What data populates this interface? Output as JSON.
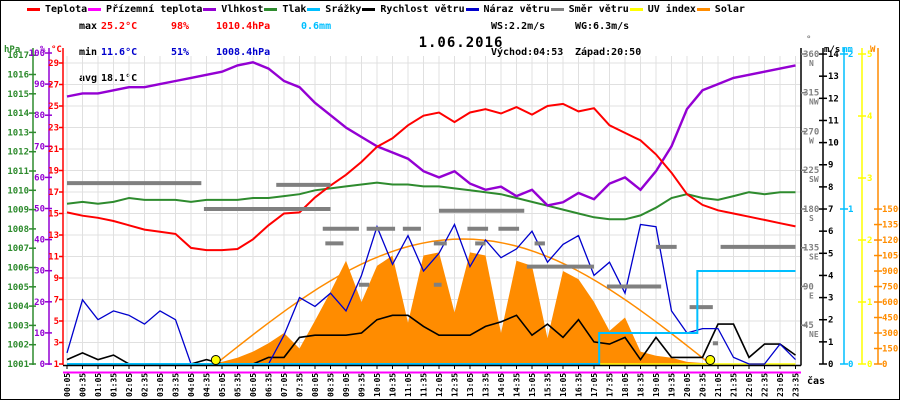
{
  "header": {
    "legend": [
      {
        "label": "Teplota",
        "color": "#ff0000"
      },
      {
        "label": "Přízemní teplota",
        "color": "#ff00ff"
      },
      {
        "label": "Vlhkost",
        "color": "#9400d3"
      },
      {
        "label": "Tlak",
        "color": "#2e8b2e"
      },
      {
        "label": "Srážky",
        "color": "#00bfff"
      },
      {
        "label": "Rychlost větru",
        "color": "#000000"
      },
      {
        "label": "Náraz větru",
        "color": "#0000cd"
      },
      {
        "label": "Směr větru",
        "color": "#808080"
      },
      {
        "label": "UV index",
        "color": "#ffff00"
      },
      {
        "label": "Solar",
        "color": "#ff8c00"
      }
    ],
    "stats": {
      "max_label": "max",
      "max_temp": "25.2°C",
      "max_hum": "98%",
      "max_press": "1010.4hPa",
      "rain_total": "0.6mm",
      "min_label": "min",
      "min_temp": "11.6°C",
      "min_hum": "51%",
      "min_press": "1008.4hPa",
      "avg_label": "avg",
      "avg_temp": "18.1°C",
      "ws": "WS:2.2m/s",
      "wg": "WG:6.3m/s",
      "sunrise": "Východ:04:53",
      "sunset": "Západ:20:50"
    },
    "title": "1.06.2016"
  },
  "chart_data": {
    "type": "line",
    "title": "1.06.2016",
    "x_label": "čas",
    "times": [
      "00:05",
      "00:35",
      "01:05",
      "01:35",
      "02:05",
      "02:35",
      "03:05",
      "03:35",
      "04:05",
      "04:35",
      "05:05",
      "05:35",
      "06:05",
      "06:35",
      "07:05",
      "07:35",
      "08:05",
      "08:35",
      "09:05",
      "09:35",
      "10:05",
      "10:35",
      "11:05",
      "11:35",
      "12:05",
      "12:35",
      "13:05",
      "13:35",
      "14:05",
      "14:35",
      "15:05",
      "15:35",
      "16:05",
      "16:35",
      "17:05",
      "17:35",
      "18:05",
      "18:35",
      "19:05",
      "19:35",
      "20:05",
      "20:35",
      "21:05",
      "21:35",
      "22:05",
      "22:35",
      "23:05",
      "23:35"
    ],
    "series": [
      {
        "name": "Teplota",
        "unit": "°C",
        "color": "#ff0000",
        "axis": "c",
        "width": 2,
        "values": [
          15.1,
          14.8,
          14.6,
          14.3,
          13.9,
          13.5,
          13.3,
          13.1,
          11.8,
          11.6,
          11.6,
          11.7,
          12.6,
          13.9,
          15.0,
          15.1,
          16.5,
          17.6,
          18.6,
          19.8,
          21.2,
          22.0,
          23.2,
          24.1,
          24.4,
          23.5,
          24.4,
          24.7,
          24.3,
          24.9,
          24.2,
          25.0,
          25.2,
          24.5,
          24.8,
          23.2,
          22.5,
          21.8,
          20.5,
          18.8,
          16.8,
          15.8,
          15.3,
          15.0,
          14.7,
          14.4,
          14.1,
          13.8
        ]
      },
      {
        "name": "Vlhkost",
        "unit": "%",
        "color": "#9400d3",
        "axis": "pct",
        "width": 2.4,
        "values": [
          86,
          87,
          87,
          88,
          89,
          89,
          90,
          91,
          92,
          93,
          94,
          96,
          97,
          95,
          91,
          89,
          84,
          80,
          76,
          73,
          70,
          68,
          66,
          62,
          60,
          62,
          58,
          56,
          57,
          54,
          56,
          51,
          52,
          55,
          53,
          58,
          60,
          56,
          62,
          70,
          82,
          88,
          90,
          92,
          93,
          94,
          95,
          96
        ]
      },
      {
        "name": "Tlak",
        "unit": "hPa",
        "color": "#2e8b2e",
        "axis": "hpa",
        "width": 2,
        "values": [
          1009.3,
          1009.4,
          1009.3,
          1009.4,
          1009.6,
          1009.5,
          1009.5,
          1009.5,
          1009.4,
          1009.5,
          1009.5,
          1009.5,
          1009.6,
          1009.6,
          1009.7,
          1009.8,
          1010.0,
          1010.1,
          1010.2,
          1010.3,
          1010.4,
          1010.3,
          1010.3,
          1010.2,
          1010.2,
          1010.1,
          1010.0,
          1009.9,
          1009.8,
          1009.6,
          1009.4,
          1009.2,
          1009.0,
          1008.8,
          1008.6,
          1008.5,
          1008.5,
          1008.7,
          1009.1,
          1009.6,
          1009.8,
          1009.6,
          1009.5,
          1009.7,
          1009.9,
          1009.8,
          1009.9,
          1009.9
        ]
      },
      {
        "name": "Rychlost větru",
        "unit": "m/s",
        "color": "#000000",
        "axis": "ms",
        "width": 1.6,
        "values": [
          0.2,
          0.5,
          0.2,
          0.4,
          0.0,
          0.0,
          0.0,
          0.0,
          0.0,
          0.2,
          0.0,
          0.0,
          0.0,
          0.3,
          0.3,
          1.2,
          1.3,
          1.3,
          1.3,
          1.4,
          2.0,
          2.2,
          2.2,
          1.7,
          1.3,
          1.3,
          1.3,
          1.7,
          1.9,
          2.2,
          1.3,
          1.8,
          1.2,
          2.0,
          1.0,
          0.9,
          1.2,
          0.2,
          1.2,
          0.3,
          0.3,
          0.3,
          1.8,
          1.8,
          0.3,
          0.9,
          0.9,
          0.4
        ]
      },
      {
        "name": "Náraz větru",
        "unit": "m/s",
        "color": "#0000cd",
        "axis": "ms",
        "width": 1.3,
        "values": [
          0.5,
          2.9,
          2.0,
          2.4,
          2.2,
          1.8,
          2.4,
          2.0,
          0.0,
          0.0,
          0.0,
          0.0,
          0.0,
          0.0,
          1.3,
          3.0,
          2.6,
          3.2,
          2.4,
          4.0,
          6.2,
          4.5,
          5.8,
          4.2,
          5.0,
          6.3,
          4.4,
          5.6,
          4.8,
          5.2,
          6.0,
          4.6,
          5.4,
          5.8,
          4.0,
          4.6,
          3.2,
          6.3,
          6.2,
          2.4,
          1.4,
          1.6,
          1.6,
          0.3,
          0.0,
          0.0,
          0.9,
          0.2
        ]
      },
      {
        "name": "Solar",
        "unit": "W",
        "color": "#ff8c00",
        "axis": "w",
        "fill": true,
        "width": 1,
        "values": [
          0,
          0,
          0,
          0,
          0,
          0,
          0,
          0,
          0,
          0,
          20,
          60,
          120,
          200,
          300,
          150,
          420,
          700,
          1000,
          600,
          950,
          1050,
          400,
          1050,
          1080,
          500,
          1080,
          1050,
          300,
          1000,
          950,
          250,
          900,
          820,
          600,
          320,
          450,
          120,
          80,
          60,
          20,
          10,
          0,
          0,
          0,
          0,
          0,
          0
        ]
      },
      {
        "name": "UV index",
        "unit": "",
        "color": "#ffff00",
        "axis": "uv",
        "width": 1.6,
        "values": [
          0,
          0,
          0,
          0,
          0,
          0,
          0,
          0,
          0,
          0,
          0,
          0,
          0,
          0,
          0,
          0,
          0,
          0,
          0,
          0,
          0,
          0,
          0,
          0,
          0,
          0,
          0,
          0,
          0,
          0,
          0,
          0,
          0,
          0,
          0,
          0,
          0,
          0,
          0,
          0,
          0,
          0,
          0,
          0,
          0,
          0,
          0,
          0
        ]
      }
    ],
    "ground_temperature": {
      "name": "Přízemní teplota",
      "color": "#ff00ff",
      "flat_below_scale": true
    },
    "precipitation": {
      "name": "Srážky",
      "unit": "mm",
      "color": "#00bfff",
      "cumulative_steps": [
        {
          "t": "00:05",
          "mm": 0
        },
        {
          "t": "17:05",
          "mm": 0
        },
        {
          "t": "17:15",
          "mm": 0.2
        },
        {
          "t": "20:15",
          "mm": 0.2
        },
        {
          "t": "20:25",
          "mm": 0.6
        },
        {
          "t": "23:35",
          "mm": 0.6
        }
      ]
    },
    "wind_direction": {
      "name": "Směr větru",
      "color": "#808080",
      "segments": [
        {
          "deg": 210,
          "from": "00:05",
          "to": "04:25"
        },
        {
          "deg": 180,
          "from": "04:30",
          "to": "08:35"
        },
        {
          "deg": 208,
          "from": "06:50",
          "to": "08:35"
        },
        {
          "deg": 157,
          "from": "08:20",
          "to": "09:30"
        },
        {
          "deg": 140,
          "from": "08:25",
          "to": "09:00"
        },
        {
          "deg": 92,
          "from": "09:30",
          "to": "09:50"
        },
        {
          "deg": 157,
          "from": "09:45",
          "to": "10:40"
        },
        {
          "deg": 157,
          "from": "10:55",
          "to": "11:30"
        },
        {
          "deg": 140,
          "from": "11:55",
          "to": "12:20"
        },
        {
          "deg": 92,
          "from": "11:55",
          "to": "12:10"
        },
        {
          "deg": 178,
          "from": "12:05",
          "to": "14:50"
        },
        {
          "deg": 157,
          "from": "13:00",
          "to": "13:40"
        },
        {
          "deg": 140,
          "from": "13:15",
          "to": "13:35"
        },
        {
          "deg": 157,
          "from": "14:00",
          "to": "14:40"
        },
        {
          "deg": 113,
          "from": "14:55",
          "to": "17:05"
        },
        {
          "deg": 140,
          "from": "15:10",
          "to": "15:30"
        },
        {
          "deg": 90,
          "from": "17:30",
          "to": "19:15"
        },
        {
          "deg": 136,
          "from": "19:05",
          "to": "19:45"
        },
        {
          "deg": 66,
          "from": "20:10",
          "to": "20:55"
        },
        {
          "deg": 24,
          "from": "20:55",
          "to": "21:05"
        },
        {
          "deg": 136,
          "from": "21:10",
          "to": "23:35"
        }
      ]
    },
    "clear_sky_curve": {
      "color": "#ff8c00",
      "peak_w": 1210,
      "from": "04:53",
      "to": "20:50"
    },
    "sun_markers": {
      "sunrise": "04:53",
      "sunset": "20:50",
      "color": "#ffff00"
    },
    "axes": {
      "left": [
        {
          "name": "pressure",
          "header": "hPa",
          "color": "#2e8b2e",
          "min": 1001,
          "max": 1017,
          "step": 1
        },
        {
          "name": "humidity",
          "header": "%",
          "color": "#9400d3",
          "min": 0,
          "max": 100,
          "step": 10
        },
        {
          "name": "temperature",
          "header": "°C",
          "color": "#ff0000",
          "min": 1,
          "max": 29,
          "step": 2
        }
      ],
      "right": [
        {
          "name": "wind-direction",
          "header": "°",
          "color": "#808080",
          "ticks": [
            {
              "deg": 360,
              "label": "N"
            },
            {
              "deg": 315,
              "label": "NW"
            },
            {
              "deg": 270,
              "label": "W"
            },
            {
              "deg": 225,
              "label": "SW"
            },
            {
              "deg": 180,
              "label": "S"
            },
            {
              "deg": 135,
              "label": "SE"
            },
            {
              "deg": 90,
              "label": "E"
            },
            {
              "deg": 45,
              "label": "NE"
            }
          ]
        },
        {
          "name": "wind-speed",
          "header": "m/s",
          "color": "#000000",
          "min": 0,
          "max": 14,
          "step": 1
        },
        {
          "name": "rain",
          "header": "mm",
          "color": "#00bfff",
          "min": 0,
          "max": 2,
          "step": 1
        },
        {
          "name": "uv",
          "header": "",
          "color": "#ffff00",
          "min": 0,
          "max": 5,
          "step": 1
        },
        {
          "name": "solar",
          "header": "W",
          "color": "#ff8c00",
          "min": 0,
          "max": 1500,
          "step": 150
        }
      ],
      "x_label": "čas",
      "grid": true
    }
  }
}
